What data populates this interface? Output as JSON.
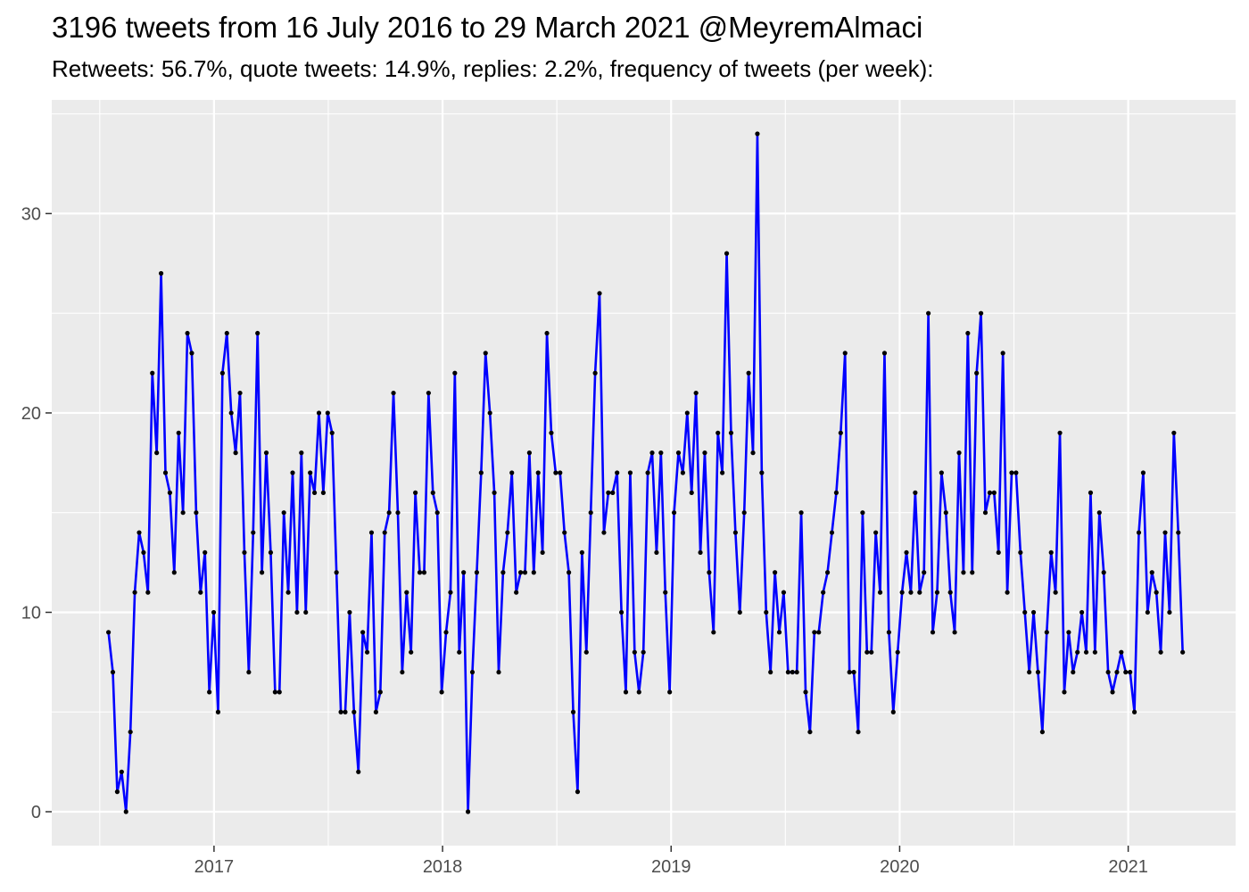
{
  "title": "3196 tweets from 16 July 2016 to 29 March 2021 @MeyremAlmaci",
  "subtitle": "Retweets: 56.7%, quote tweets: 14.9%, replies: 2.2%, frequency of tweets (per week):",
  "colors": {
    "panel_background": "#ebebeb",
    "grid": "#ffffff",
    "line": "#0000ff",
    "point": "#000000",
    "tick_text": "#4d4d4d"
  },
  "chart_data": {
    "type": "line",
    "xlabel": "",
    "ylabel": "",
    "x_ticks": [
      "2017",
      "2018",
      "2019",
      "2020",
      "2021"
    ],
    "y_ticks": [
      0,
      10,
      20,
      30
    ],
    "ylim": [
      -1.7,
      35.7
    ],
    "xlim": [
      2016.29,
      2021.47
    ],
    "grid": true,
    "legend": "none",
    "x_start": "2016-07-16",
    "x_end": "2021-03-29",
    "interval": "weekly",
    "values": [
      9,
      7,
      1,
      2,
      0,
      4,
      11,
      14,
      13,
      11,
      22,
      18,
      27,
      17,
      16,
      12,
      19,
      15,
      24,
      23,
      15,
      11,
      13,
      6,
      10,
      5,
      22,
      24,
      20,
      18,
      21,
      13,
      7,
      14,
      24,
      12,
      18,
      13,
      6,
      6,
      15,
      11,
      17,
      10,
      18,
      10,
      17,
      16,
      20,
      16,
      20,
      19,
      12,
      5,
      5,
      10,
      5,
      2,
      9,
      8,
      14,
      5,
      6,
      14,
      15,
      21,
      15,
      7,
      11,
      8,
      16,
      12,
      12,
      21,
      16,
      15,
      6,
      9,
      11,
      22,
      8,
      12,
      0,
      7,
      12,
      17,
      23,
      20,
      16,
      7,
      12,
      14,
      17,
      11,
      12,
      12,
      18,
      12,
      17,
      13,
      24,
      19,
      17,
      17,
      14,
      12,
      5,
      1,
      13,
      8,
      15,
      22,
      26,
      14,
      16,
      16,
      17,
      10,
      6,
      17,
      8,
      6,
      8,
      17,
      18,
      13,
      18,
      11,
      6,
      15,
      18,
      17,
      20,
      16,
      21,
      13,
      18,
      12,
      9,
      19,
      17,
      28,
      19,
      14,
      10,
      15,
      22,
      18,
      34,
      17,
      10,
      7,
      12,
      9,
      11,
      7,
      7,
      7,
      15,
      6,
      4,
      9,
      9,
      11,
      12,
      14,
      16,
      19,
      23,
      7,
      7,
      4,
      15,
      8,
      8,
      14,
      11,
      23,
      9,
      5,
      8,
      11,
      13,
      11,
      16,
      11,
      12,
      25,
      9,
      11,
      17,
      15,
      11,
      9,
      18,
      12,
      24,
      12,
      22,
      25,
      15,
      16,
      16,
      13,
      23,
      11,
      17,
      17,
      13,
      10,
      7,
      10,
      7,
      4,
      9,
      13,
      11,
      19,
      6,
      9,
      7,
      8,
      10,
      8,
      16,
      8,
      15,
      12,
      7,
      6,
      7,
      8,
      7,
      7,
      5,
      14,
      17,
      10,
      12,
      11,
      8,
      14,
      10,
      19,
      14,
      8
    ]
  }
}
